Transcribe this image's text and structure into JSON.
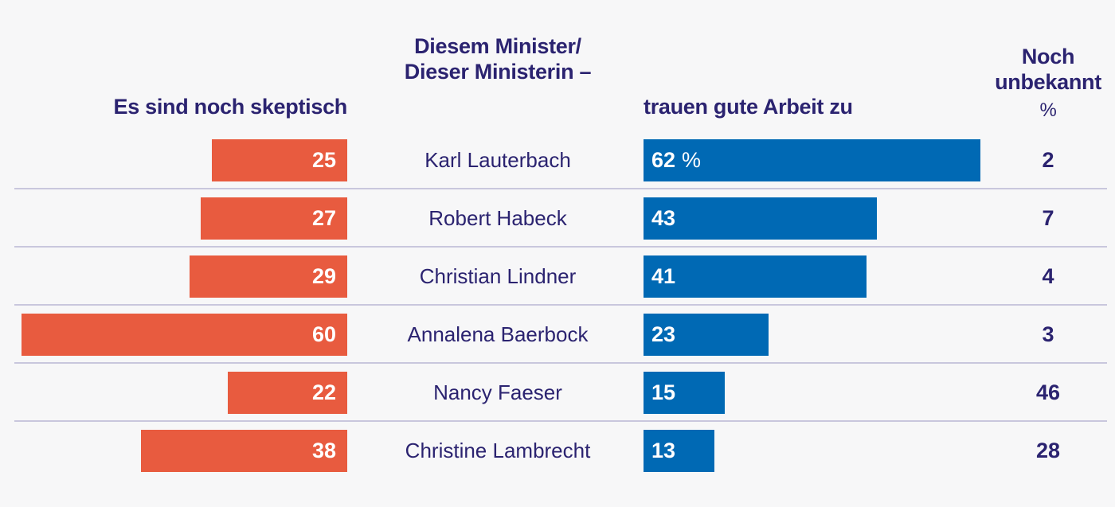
{
  "headers": {
    "left": "Es sind noch skeptisch",
    "center_line1": "Diesem Minister/",
    "center_line2": "Dieser Ministerin –",
    "right": "trauen gute Arbeit zu",
    "unknown_line1": "Noch",
    "unknown_line2": "unbekannt",
    "unknown_unit": "%"
  },
  "colors": {
    "skeptical": "#e85b3f",
    "trust": "#0069b4",
    "text": "#2b2370",
    "separator": "#c9c7dd"
  },
  "chart_data": {
    "type": "bar",
    "title": "",
    "categories": [
      "Karl Lauterbach",
      "Robert Habeck",
      "Christian Lindner",
      "Annalena Baerbock",
      "Nancy Faeser",
      "Christine Lambrecht"
    ],
    "series": [
      {
        "name": "Es sind noch skeptisch",
        "values": [
          25,
          27,
          29,
          60,
          22,
          38
        ],
        "direction": "left"
      },
      {
        "name": "trauen gute Arbeit zu",
        "values": [
          62,
          43,
          41,
          23,
          15,
          13
        ],
        "direction": "right"
      },
      {
        "name": "Noch unbekannt",
        "values": [
          2,
          7,
          4,
          3,
          46,
          28
        ],
        "display": "text"
      }
    ],
    "first_value_unit": "%",
    "xlabel": "",
    "ylabel": "",
    "xlim": [
      0,
      100
    ],
    "grid": false,
    "legend": "column headers"
  }
}
